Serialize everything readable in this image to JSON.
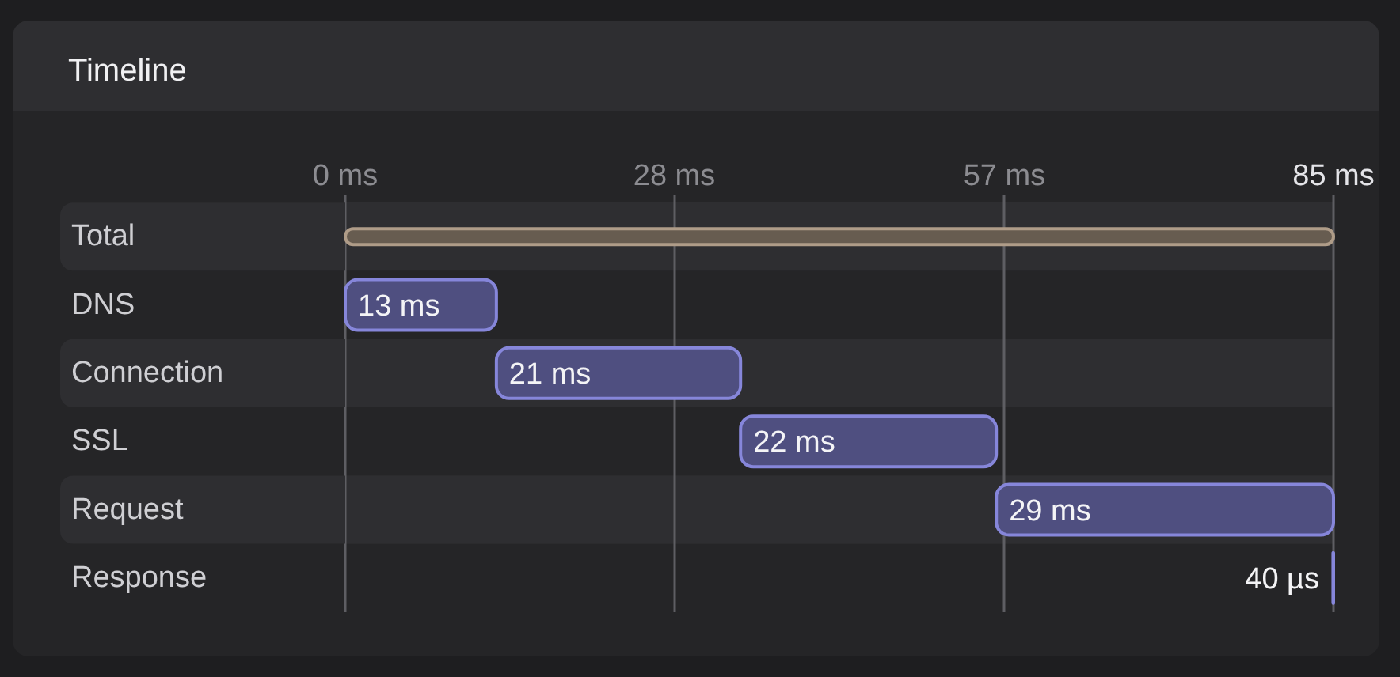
{
  "chart_data": {
    "type": "bar",
    "orientation": "horizontal",
    "title": "Timeline",
    "categories": [
      "Total",
      "DNS",
      "Connection",
      "SSL",
      "Request",
      "Response"
    ],
    "values": [
      85,
      13,
      21,
      22,
      29,
      0.04
    ],
    "base": [
      0,
      0,
      13,
      34,
      56,
      84.96
    ],
    "colors": [
      "#675c50",
      "#4f4f80",
      "#4f4f80",
      "#4f4f80",
      "#4f4f80",
      "#4f4f80"
    ],
    "value_labels": [
      null,
      "13 ms",
      "21 ms",
      "22 ms",
      "29 ms",
      null
    ],
    "annotations": [
      {
        "text": "40 µs",
        "x": 85,
        "y": "Response"
      }
    ],
    "xlim": [
      0,
      85
    ],
    "xticks": [
      {
        "value": 0,
        "label": "0 ms"
      },
      {
        "value": 28.3,
        "label": "28 ms"
      },
      {
        "value": 56.7,
        "label": "57 ms"
      },
      {
        "value": 85,
        "label": "85 ms"
      }
    ],
    "grid": "x"
  }
}
